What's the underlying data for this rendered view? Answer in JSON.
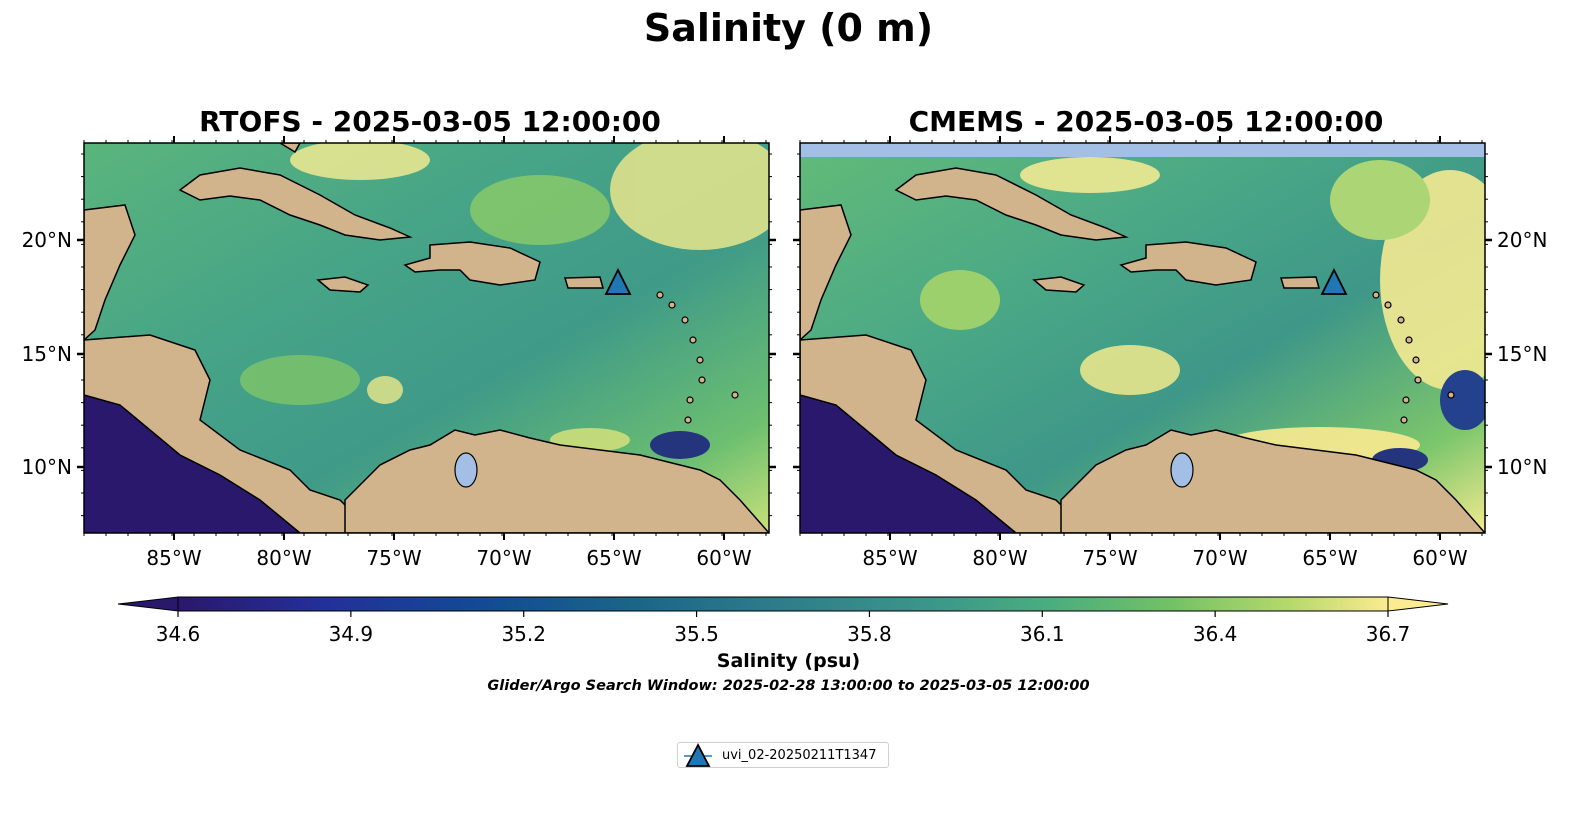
{
  "title": "Salinity (0 m)",
  "panels": [
    {
      "title": "RTOFS - 2025-03-05 12:00:00"
    },
    {
      "title": "CMEMS - 2025-03-05 12:00:00"
    }
  ],
  "map": {
    "lon_ticks": [
      "85°W",
      "80°W",
      "75°W",
      "70°W",
      "65°W",
      "60°W"
    ],
    "lat_ticks": [
      "20°N",
      "15°N",
      "10°N"
    ],
    "lon_range": [
      -89,
      -58
    ],
    "lat_range": [
      7,
      24.3
    ]
  },
  "colorbar": {
    "ticks": [
      "34.6",
      "34.9",
      "35.2",
      "35.5",
      "35.8",
      "36.1",
      "36.4",
      "36.7"
    ],
    "label": "Salinity (psu)",
    "range": [
      34.6,
      36.7
    ],
    "colormap": "haline"
  },
  "search_window": "Glider/Argo Search Window: 2025-02-28 13:00:00 to 2025-03-05 12:00:00",
  "legend": {
    "entries": [
      {
        "label": "uvi_02-20250211T1347",
        "marker": "triangle-marker-icon",
        "color": "#1f77b4",
        "lon": -64.8,
        "lat": 18.4
      }
    ]
  },
  "colors": {
    "land": "#d2b48c",
    "lake": "#a3bfe5",
    "low_salinity": "#2a186c",
    "mid_salinity": "#3f9e8a",
    "high_salinity": "#fdee99",
    "marker": "#1f77b4"
  }
}
